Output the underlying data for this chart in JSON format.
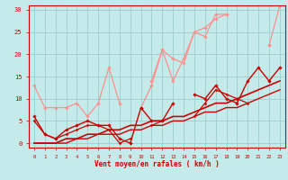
{
  "xlabel": "Vent moyen/en rafales ( km/h )",
  "xlim": [
    -0.5,
    23.5
  ],
  "ylim": [
    -1,
    31
  ],
  "yticks": [
    0,
    5,
    10,
    15,
    20,
    25,
    30
  ],
  "xticks": [
    0,
    1,
    2,
    3,
    4,
    5,
    6,
    7,
    8,
    9,
    10,
    11,
    12,
    13,
    14,
    15,
    16,
    17,
    18,
    19,
    20,
    21,
    22,
    23
  ],
  "bg_color": "#c4eaea",
  "grid_color": "#9dcece",
  "series": [
    {
      "x": [
        0,
        1,
        2,
        3,
        4,
        5,
        6,
        7,
        8,
        9,
        10,
        11,
        12,
        13,
        14,
        15,
        16,
        17,
        18,
        19,
        20,
        21,
        22,
        23
      ],
      "y": [
        13,
        8,
        8,
        8,
        9,
        6,
        9,
        17,
        9,
        null,
        null,
        14,
        21,
        19,
        18,
        25,
        24,
        29,
        29,
        null,
        null,
        null,
        22,
        null
      ],
      "color": "#ff9090",
      "lw": 0.9,
      "marker": "D",
      "ms": 1.8
    },
    {
      "x": [
        0,
        1,
        2,
        3,
        4,
        5,
        6,
        7,
        8,
        9,
        10,
        11,
        12,
        13,
        14,
        15,
        16,
        17,
        18,
        19,
        20,
        21,
        22,
        23
      ],
      "y": [
        null,
        null,
        null,
        null,
        null,
        null,
        null,
        null,
        null,
        null,
        8,
        13,
        21,
        14,
        19,
        25,
        26,
        28,
        29,
        null,
        null,
        null,
        22,
        31
      ],
      "color": "#ff9090",
      "lw": 0.9,
      "marker": "D",
      "ms": 1.8
    },
    {
      "x": [
        0,
        1,
        2,
        3,
        4,
        5,
        6,
        7,
        8,
        9,
        10,
        11,
        12,
        13,
        14,
        15,
        16,
        17,
        18,
        19,
        20,
        21,
        22,
        23
      ],
      "y": [
        6,
        2,
        1,
        3,
        4,
        5,
        4,
        4,
        1,
        0,
        8,
        5,
        5,
        9,
        null,
        11,
        10,
        13,
        10,
        9,
        14,
        17,
        14,
        17
      ],
      "color": "#cc0000",
      "lw": 1.0,
      "marker": "D",
      "ms": 1.8
    },
    {
      "x": [
        0,
        1,
        2,
        3,
        4,
        5,
        6,
        7,
        8,
        9,
        10,
        11,
        12,
        13,
        14,
        15,
        16,
        17,
        18,
        19,
        20,
        21,
        22,
        23
      ],
      "y": [
        5,
        2,
        1,
        2,
        3,
        4,
        4,
        3,
        0,
        1,
        null,
        4,
        5,
        null,
        null,
        6,
        9,
        12,
        11,
        10,
        9,
        null,
        14,
        null
      ],
      "color": "#cc0000",
      "lw": 0.9,
      "marker": "D",
      "ms": 1.5
    },
    {
      "x": [
        0,
        1,
        2,
        3,
        4,
        5,
        6,
        7,
        8,
        9,
        10,
        11,
        12,
        13,
        14,
        15,
        16,
        17,
        18,
        19,
        20,
        21,
        22,
        23
      ],
      "y": [
        0,
        0,
        0,
        1,
        1,
        2,
        2,
        3,
        3,
        4,
        4,
        5,
        5,
        6,
        6,
        7,
        8,
        9,
        9,
        10,
        11,
        12,
        13,
        14
      ],
      "color": "#cc0000",
      "lw": 1.2,
      "marker": null,
      "ms": 0
    },
    {
      "x": [
        0,
        1,
        2,
        3,
        4,
        5,
        6,
        7,
        8,
        9,
        10,
        11,
        12,
        13,
        14,
        15,
        16,
        17,
        18,
        19,
        20,
        21,
        22,
        23
      ],
      "y": [
        0,
        0,
        0,
        0,
        1,
        1,
        2,
        2,
        2,
        3,
        3,
        4,
        4,
        5,
        5,
        6,
        7,
        7,
        8,
        8,
        9,
        10,
        11,
        12
      ],
      "color": "#cc0000",
      "lw": 1.0,
      "marker": null,
      "ms": 0
    }
  ]
}
